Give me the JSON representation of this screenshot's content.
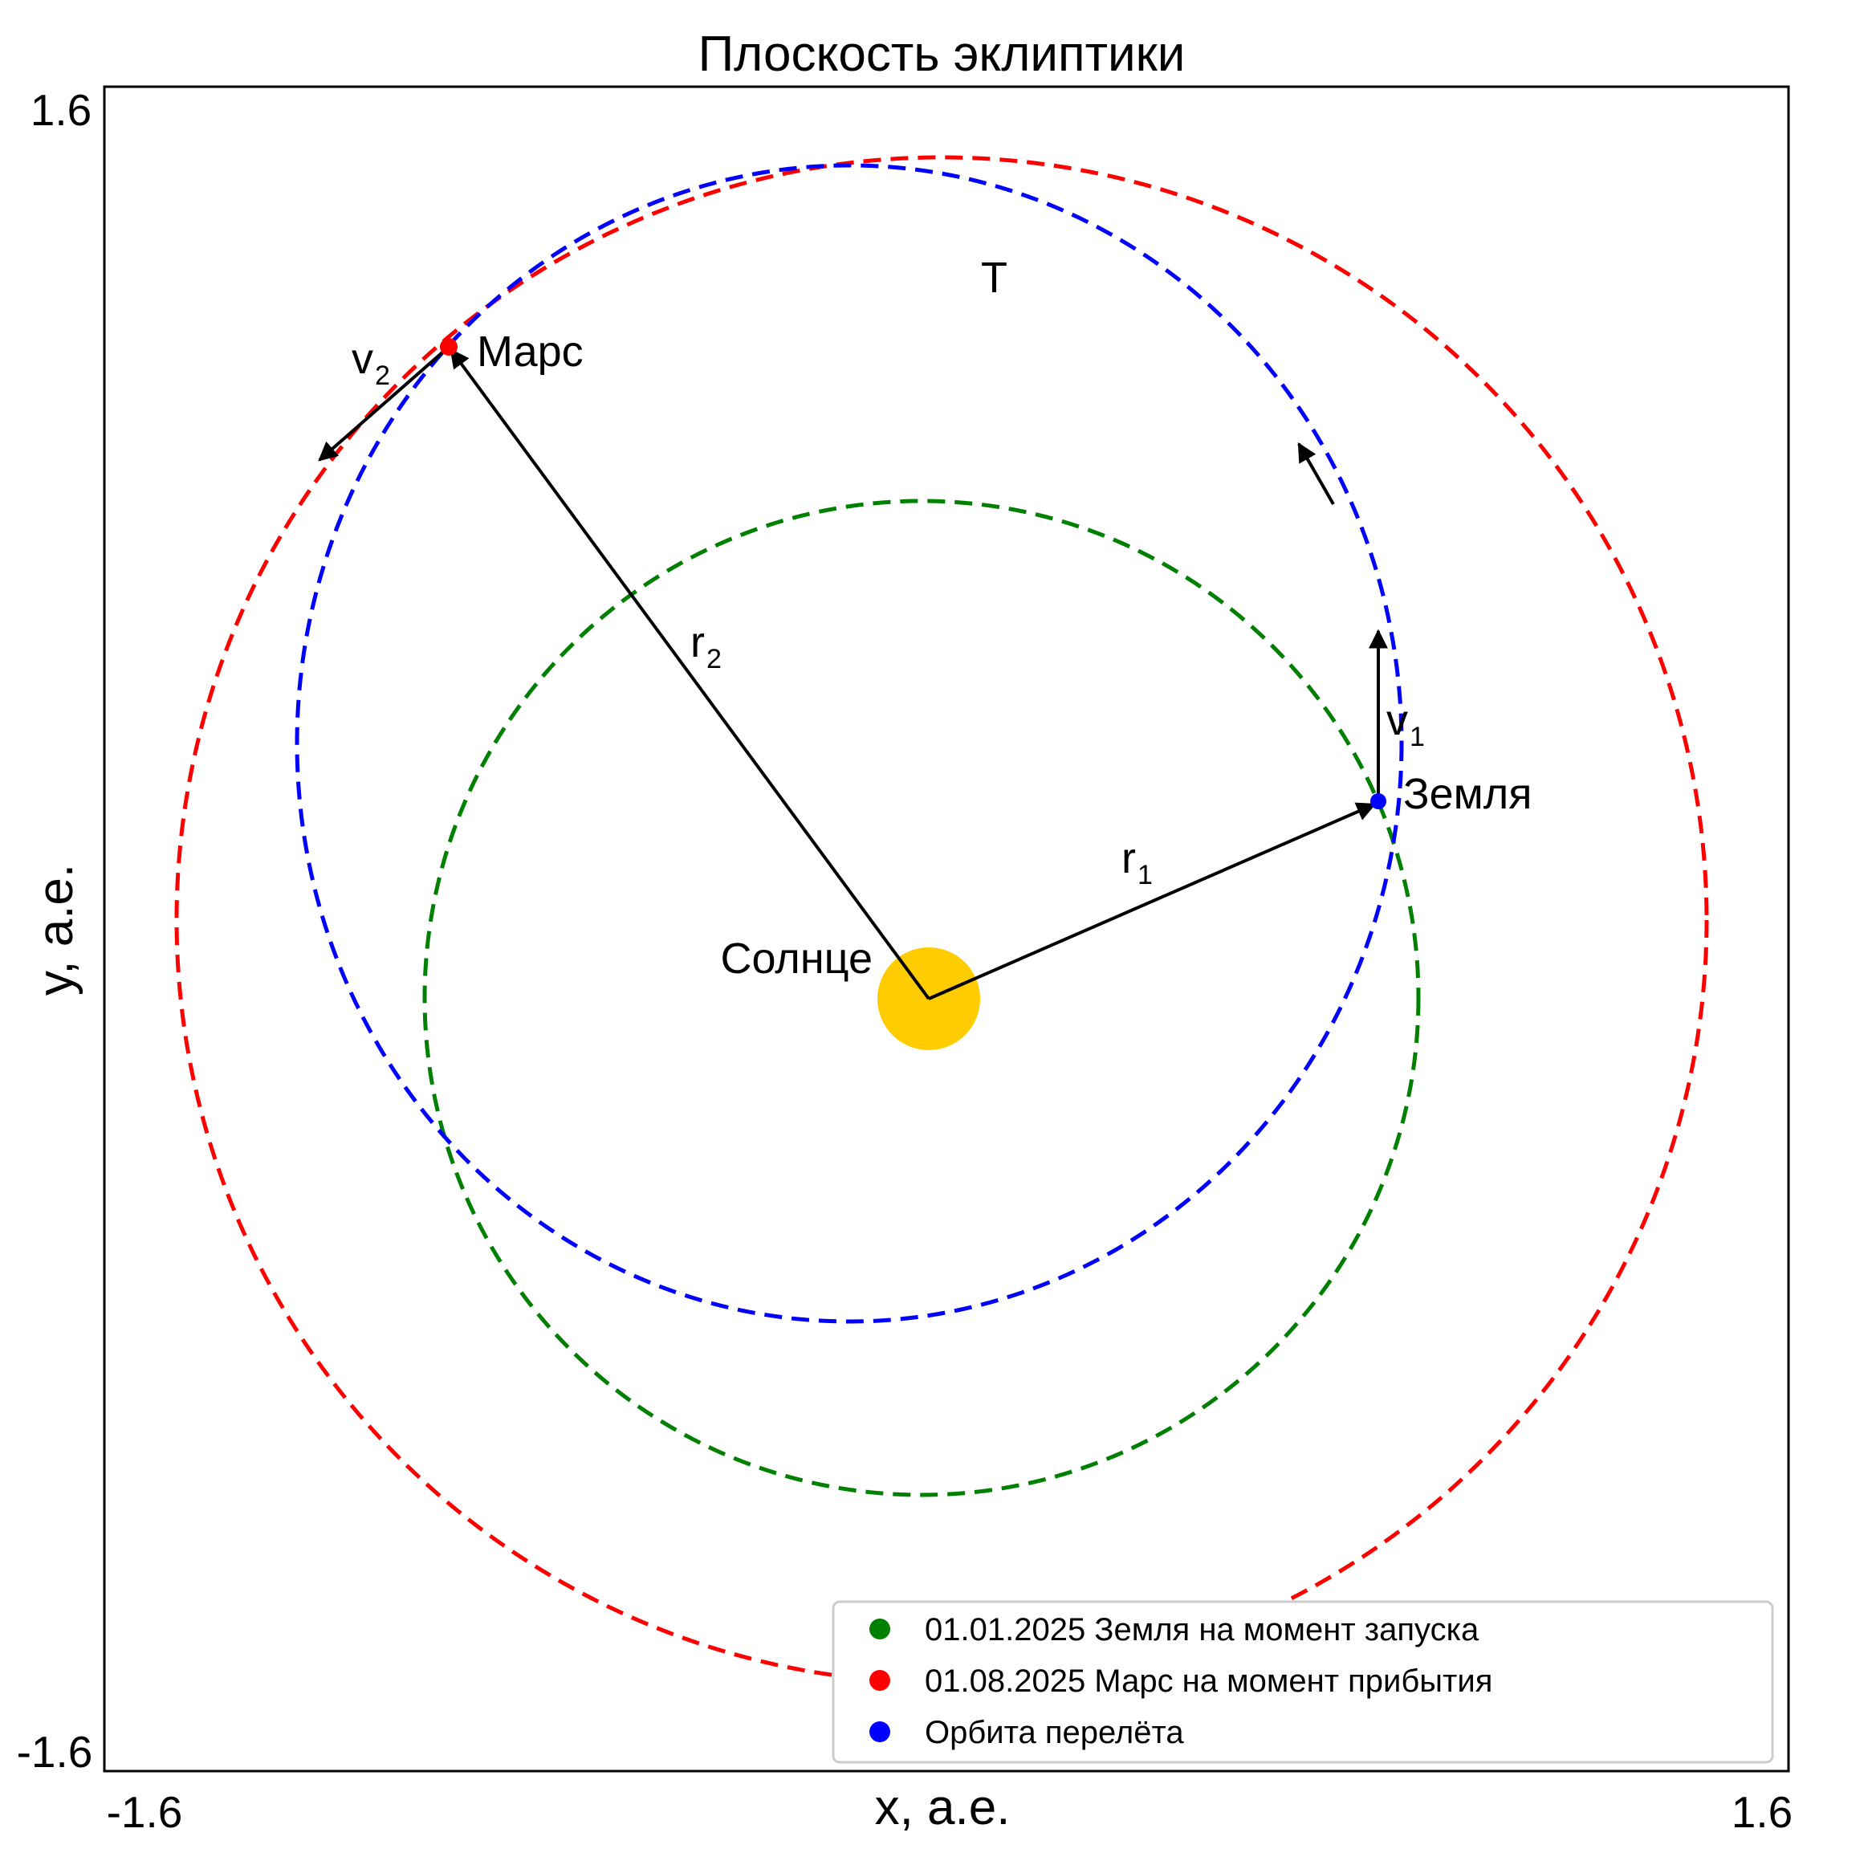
{
  "title": "Плоскость эклиптики",
  "axes": {
    "xlabel": "x, а.е.",
    "ylabel": "y, а.е.",
    "x_ticks": [
      "-1.6",
      "1.6"
    ],
    "y_ticks": [
      "1.6",
      "-1.6"
    ]
  },
  "labels": {
    "sun": "Солнце",
    "earth": "Земля",
    "mars": "Марс",
    "transfer": "T",
    "r1": "r",
    "r1_sub": "1",
    "r2": "r",
    "r2_sub": "2",
    "v1": "v",
    "v1_sub": "1",
    "v2": "v",
    "v2_sub": "2"
  },
  "legend": {
    "items": [
      {
        "label": "01.01.2025 Земля на момент запуска",
        "color": "#008000"
      },
      {
        "label": "01.08.2025 Марс на момент прибытия",
        "color": "#ff0000"
      },
      {
        "label": "Орбита перелёта",
        "color": "#0000ff"
      }
    ]
  },
  "colors": {
    "earth_orbit": "#008000",
    "mars_orbit": "#ff0000",
    "transfer_orbit": "#0000ff",
    "sun": "#ffcc00",
    "vectors": "#000000"
  }
}
